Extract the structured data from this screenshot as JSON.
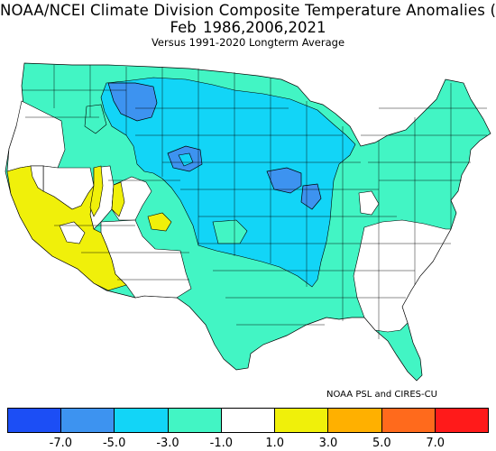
{
  "title": {
    "line1": "NOAA/NCEI Climate Division Composite Temperature Anomalies (F)",
    "line2": "Feb   1986,2006,2021",
    "line3": "Versus 1991-2020 Longterm Average"
  },
  "credit": "NOAA PSL and CIRES-CU",
  "legend": {
    "colors": [
      "#1c4ef5",
      "#3d93f0",
      "#12d5f7",
      "#42f5c4",
      "#ffffff",
      "#f0f00a",
      "#ffb000",
      "#ff6a1c",
      "#ff1a1a"
    ],
    "ticks": [
      "-7.0",
      "-5.0",
      "-3.0",
      "-1.0",
      "1.0",
      "3.0",
      "5.0",
      "7.0"
    ]
  },
  "map_colors": {
    "blue": "#3d93f0",
    "cyan": "#12d5f7",
    "aqua": "#42f5c4",
    "white": "#ffffff",
    "yellow": "#f0f00a",
    "border": "#000000"
  }
}
